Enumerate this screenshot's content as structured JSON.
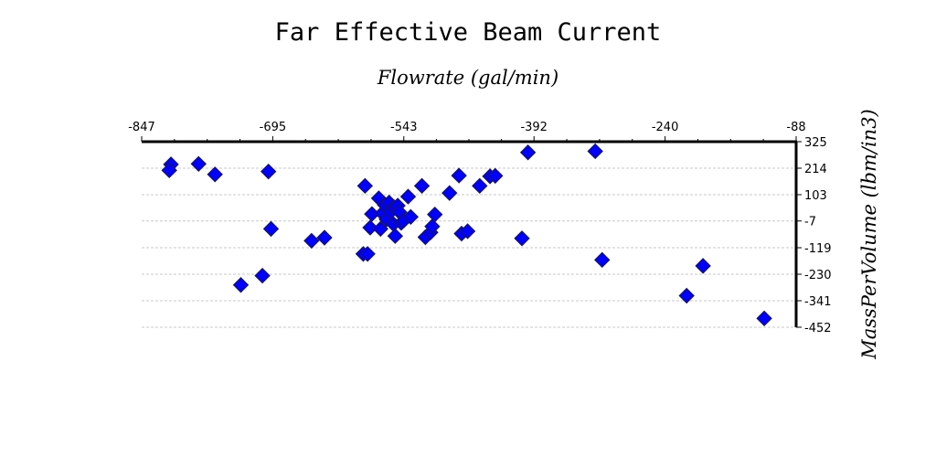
{
  "chart_data": {
    "type": "scatter",
    "title": "Far Effective Beam Current",
    "xlabel": "Flowrate (gal/min)",
    "ylabel": "MassPerVolume (lbm/in3)",
    "xlim": [
      -847,
      -88
    ],
    "ylim": [
      -452,
      325
    ],
    "x_ticks": [
      "-847",
      "-695",
      "-543",
      "-392",
      "-240",
      "-88"
    ],
    "y_ticks": [
      "325",
      "214",
      "103",
      "-7",
      "-119",
      "-230",
      "-341",
      "-452"
    ],
    "x_axis_position": "top",
    "y_axis_position": "right",
    "grid": "horizontal dashed",
    "legend": "none",
    "marker": "diamond",
    "marker_color": "#0000ff",
    "points": [
      {
        "x": -813,
        "y": 230
      },
      {
        "x": -815,
        "y": 205
      },
      {
        "x": -781,
        "y": 232
      },
      {
        "x": -762,
        "y": 188
      },
      {
        "x": -700,
        "y": 200
      },
      {
        "x": -697,
        "y": -40
      },
      {
        "x": -732,
        "y": -275
      },
      {
        "x": -707,
        "y": -236
      },
      {
        "x": -650,
        "y": -90
      },
      {
        "x": -635,
        "y": -77
      },
      {
        "x": -590,
        "y": -145
      },
      {
        "x": -585,
        "y": -145
      },
      {
        "x": -588,
        "y": 140
      },
      {
        "x": -582,
        "y": -35
      },
      {
        "x": -580,
        "y": 22
      },
      {
        "x": -572,
        "y": 88
      },
      {
        "x": -568,
        "y": 25
      },
      {
        "x": -570,
        "y": -40
      },
      {
        "x": -565,
        "y": 60
      },
      {
        "x": -563,
        "y": 0
      },
      {
        "x": -560,
        "y": 70
      },
      {
        "x": -558,
        "y": 32
      },
      {
        "x": -555,
        "y": -20
      },
      {
        "x": -554,
        "y": 50
      },
      {
        "x": -553,
        "y": -70
      },
      {
        "x": -550,
        "y": 57
      },
      {
        "x": -548,
        "y": 30
      },
      {
        "x": -546,
        "y": -15
      },
      {
        "x": -543,
        "y": -5
      },
      {
        "x": -538,
        "y": 95
      },
      {
        "x": -535,
        "y": 10
      },
      {
        "x": -522,
        "y": 140
      },
      {
        "x": -518,
        "y": -75
      },
      {
        "x": -512,
        "y": -55
      },
      {
        "x": -510,
        "y": -30
      },
      {
        "x": -507,
        "y": 20
      },
      {
        "x": -490,
        "y": 110
      },
      {
        "x": -479,
        "y": 183
      },
      {
        "x": -476,
        "y": -60
      },
      {
        "x": -469,
        "y": -50
      },
      {
        "x": -455,
        "y": 140
      },
      {
        "x": -443,
        "y": 180
      },
      {
        "x": -437,
        "y": 182
      },
      {
        "x": -406,
        "y": -80
      },
      {
        "x": -399,
        "y": 280
      },
      {
        "x": -321,
        "y": 285
      },
      {
        "x": -313,
        "y": -170
      },
      {
        "x": -215,
        "y": -320
      },
      {
        "x": -196,
        "y": -195
      },
      {
        "x": -125,
        "y": -415
      }
    ]
  }
}
